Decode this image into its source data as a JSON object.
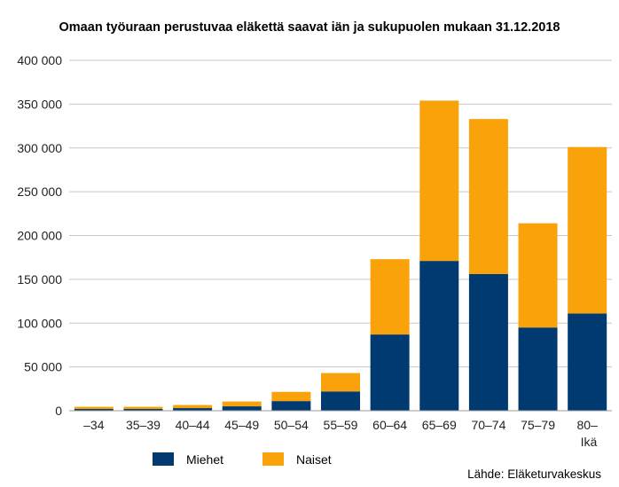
{
  "chart_data": {
    "type": "bar",
    "stacked": true,
    "title": "Omaan työuraan perustuvaa eläkettä saavat iän ja sukupuolen mukaan 31.12.2018",
    "xlabel": "Ikä",
    "ylabel": "",
    "categories": [
      "–34",
      "35–39",
      "40–44",
      "45–49",
      "50–54",
      "55–59",
      "60–64",
      "65–69",
      "70–74",
      "75–79",
      "80–"
    ],
    "series": [
      {
        "name": "Miehet",
        "color": "#003a70",
        "values": [
          2000,
          2000,
          3000,
          5000,
          11000,
          22000,
          87000,
          171000,
          156000,
          95000,
          111000
        ]
      },
      {
        "name": "Naiset",
        "color": "#f9a20a",
        "values": [
          2500,
          2500,
          3500,
          5500,
          10500,
          21000,
          86000,
          183000,
          177000,
          119000,
          190000
        ]
      }
    ],
    "yticks": [
      "0",
      "50 000",
      "100 000",
      "150 000",
      "200 000",
      "250 000",
      "300 000",
      "350 000",
      "400 000"
    ],
    "ylim": [
      0,
      400000
    ],
    "grid": true,
    "legend_position": "bottom",
    "source": "Lähde: Eläketurvakeskus"
  }
}
